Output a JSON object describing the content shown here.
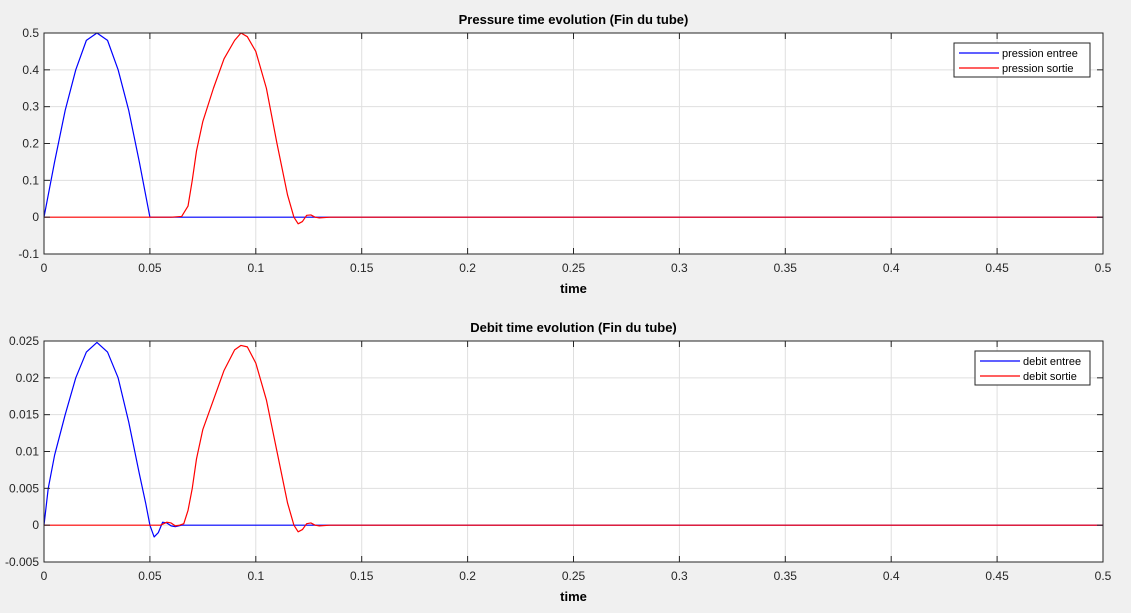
{
  "chart_data": [
    {
      "type": "line",
      "title": "Pressure time evolution (Fin du tube)",
      "xlabel": "time",
      "ylabel": "",
      "xlim": [
        0,
        0.5
      ],
      "ylim": [
        -0.1,
        0.5
      ],
      "xticks": [
        0,
        0.05,
        0.1,
        0.15,
        0.2,
        0.25,
        0.3,
        0.35,
        0.4,
        0.45,
        0.5
      ],
      "xtick_labels": [
        "0",
        "0.05",
        "0.1",
        "0.15",
        "0.2",
        "0.25",
        "0.3",
        "0.35",
        "0.4",
        "0.45",
        "0.5"
      ],
      "yticks": [
        -0.1,
        0,
        0.1,
        0.2,
        0.3,
        0.4,
        0.5
      ],
      "ytick_labels": [
        "-0.1",
        "0",
        "0.1",
        "0.2",
        "0.3",
        "0.4",
        "0.5"
      ],
      "grid": true,
      "legend_position": "top-right",
      "series": [
        {
          "name": "pression entree",
          "color": "#0000ff",
          "x": [
            0,
            0.005,
            0.01,
            0.015,
            0.02,
            0.025,
            0.03,
            0.035,
            0.04,
            0.045,
            0.05,
            0.06,
            0.1,
            0.2,
            0.3,
            0.4,
            0.5
          ],
          "y": [
            0,
            0.15,
            0.29,
            0.4,
            0.48,
            0.5,
            0.48,
            0.4,
            0.29,
            0.15,
            0,
            0,
            0,
            0,
            0,
            0,
            0
          ]
        },
        {
          "name": "pression sortie",
          "color": "#ff0000",
          "x": [
            0,
            0.06,
            0.065,
            0.068,
            0.07,
            0.072,
            0.075,
            0.08,
            0.085,
            0.09,
            0.093,
            0.096,
            0.1,
            0.105,
            0.11,
            0.115,
            0.118,
            0.12,
            0.122,
            0.124,
            0.126,
            0.128,
            0.13,
            0.135,
            0.2,
            0.3,
            0.4,
            0.5
          ],
          "y": [
            0,
            0,
            0.002,
            0.03,
            0.1,
            0.18,
            0.26,
            0.35,
            0.43,
            0.48,
            0.5,
            0.49,
            0.45,
            0.35,
            0.2,
            0.06,
            0.0,
            -0.018,
            -0.012,
            0.005,
            0.006,
            0.0,
            -0.002,
            0,
            0,
            0,
            0,
            0
          ]
        }
      ]
    },
    {
      "type": "line",
      "title": "Debit time evolution (Fin du tube)",
      "xlabel": "time",
      "ylabel": "",
      "xlim": [
        0,
        0.5
      ],
      "ylim": [
        -0.005,
        0.025
      ],
      "xticks": [
        0,
        0.05,
        0.1,
        0.15,
        0.2,
        0.25,
        0.3,
        0.35,
        0.4,
        0.45,
        0.5
      ],
      "xtick_labels": [
        "0",
        "0.05",
        "0.1",
        "0.15",
        "0.2",
        "0.25",
        "0.3",
        "0.35",
        "0.4",
        "0.45",
        "0.5"
      ],
      "yticks": [
        -0.005,
        0,
        0.005,
        0.01,
        0.015,
        0.02,
        0.025
      ],
      "ytick_labels": [
        "-0.005",
        "0",
        "0.005",
        "0.01",
        "0.015",
        "0.02",
        "0.025"
      ],
      "grid": true,
      "legend_position": "top-right",
      "series": [
        {
          "name": "debit entree",
          "color": "#0000ff",
          "x": [
            0,
            0.002,
            0.005,
            0.01,
            0.015,
            0.02,
            0.025,
            0.03,
            0.035,
            0.04,
            0.045,
            0.048,
            0.05,
            0.052,
            0.054,
            0.056,
            0.058,
            0.06,
            0.062,
            0.065,
            0.07,
            0.1,
            0.2,
            0.3,
            0.4,
            0.5
          ],
          "y": [
            0,
            0.005,
            0.0095,
            0.015,
            0.02,
            0.0235,
            0.0248,
            0.0235,
            0.02,
            0.014,
            0.007,
            0.003,
            0.0,
            -0.0016,
            -0.001,
            0.0004,
            0.0003,
            -0.0001,
            -0.0002,
            0,
            0,
            0,
            0,
            0,
            0,
            0
          ]
        },
        {
          "name": "debit sortie",
          "color": "#ff0000",
          "x": [
            0,
            0.055,
            0.058,
            0.06,
            0.062,
            0.064,
            0.066,
            0.068,
            0.07,
            0.072,
            0.075,
            0.08,
            0.085,
            0.09,
            0.093,
            0.096,
            0.1,
            0.105,
            0.11,
            0.115,
            0.118,
            0.12,
            0.122,
            0.124,
            0.126,
            0.128,
            0.13,
            0.135,
            0.2,
            0.3,
            0.4,
            0.5
          ],
          "y": [
            0,
            0,
            0.0004,
            0.0003,
            -0.0001,
            0.0,
            0.0002,
            0.002,
            0.005,
            0.009,
            0.013,
            0.017,
            0.021,
            0.0238,
            0.0244,
            0.0242,
            0.022,
            0.017,
            0.01,
            0.003,
            0.0,
            -0.0009,
            -0.0006,
            0.0002,
            0.0003,
            0.0,
            -0.0001,
            0,
            0,
            0,
            0,
            0
          ]
        }
      ]
    }
  ]
}
